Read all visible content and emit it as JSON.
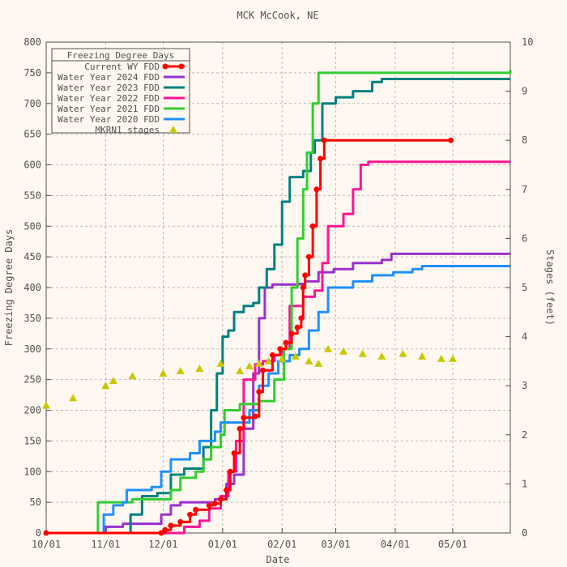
{
  "chart_data": {
    "type": "line",
    "title": "MCK McCook, NE",
    "xlabel": "Date",
    "ylabel": "Freezing Degree Days",
    "y2label": "Stages (feet)",
    "xlim": [
      "10/01",
      "05/31"
    ],
    "ylim": [
      0,
      800
    ],
    "y2lim": [
      0,
      10
    ],
    "x_ticks": [
      "10/01",
      "11/01",
      "12/01",
      "01/01",
      "02/01",
      "03/01",
      "04/01",
      "05/01"
    ],
    "y_ticks": [
      0,
      50,
      100,
      150,
      200,
      250,
      300,
      350,
      400,
      450,
      500,
      550,
      600,
      650,
      700,
      750,
      800
    ],
    "y2_ticks": [
      0,
      1,
      2,
      3,
      4,
      5,
      6,
      7,
      8,
      9,
      10
    ],
    "grid": true,
    "legend_title": "Freezing Degree Days",
    "legend_position": "top-left",
    "series": [
      {
        "name": "Current WY FDD",
        "color": "#ff0000",
        "axis": "left",
        "marker": "dot",
        "points": [
          [
            "10/01",
            0
          ],
          [
            "11/30",
            0
          ],
          [
            "12/02",
            5
          ],
          [
            "12/05",
            12
          ],
          [
            "12/10",
            18
          ],
          [
            "12/15",
            30
          ],
          [
            "12/18",
            38
          ],
          [
            "12/25",
            45
          ],
          [
            "12/28",
            48
          ],
          [
            "12/31",
            55
          ],
          [
            "01/03",
            70
          ],
          [
            "01/05",
            100
          ],
          [
            "01/07",
            130
          ],
          [
            "01/10",
            170
          ],
          [
            "01/12",
            188
          ],
          [
            "01/18",
            190
          ],
          [
            "01/20",
            230
          ],
          [
            "01/22",
            265
          ],
          [
            "01/27",
            290
          ],
          [
            "01/31",
            300
          ],
          [
            "02/03",
            310
          ],
          [
            "02/06",
            325
          ],
          [
            "02/09",
            335
          ],
          [
            "02/11",
            350
          ],
          [
            "02/12",
            400
          ],
          [
            "02/13",
            420
          ],
          [
            "02/15",
            450
          ],
          [
            "02/17",
            500
          ],
          [
            "02/19",
            560
          ],
          [
            "02/21",
            610
          ],
          [
            "02/23",
            640
          ],
          [
            "04/30",
            640
          ]
        ]
      },
      {
        "name": "Water Year 2024 FDD",
        "color": "#9932cc",
        "axis": "left",
        "points": [
          [
            "10/01",
            0
          ],
          [
            "10/30",
            0
          ],
          [
            "11/01",
            10
          ],
          [
            "11/10",
            15
          ],
          [
            "11/25",
            15
          ],
          [
            "11/30",
            30
          ],
          [
            "12/05",
            45
          ],
          [
            "12/10",
            50
          ],
          [
            "12/28",
            55
          ],
          [
            "01/03",
            80
          ],
          [
            "01/07",
            95
          ],
          [
            "01/12",
            170
          ],
          [
            "01/17",
            260
          ],
          [
            "01/20",
            350
          ],
          [
            "01/23",
            400
          ],
          [
            "01/27",
            405
          ],
          [
            "02/10",
            406
          ],
          [
            "02/13",
            410
          ],
          [
            "02/20",
            425
          ],
          [
            "02/28",
            430
          ],
          [
            "03/10",
            440
          ],
          [
            "03/25",
            445
          ],
          [
            "03/30",
            455
          ],
          [
            "05/31",
            455
          ]
        ]
      },
      {
        "name": "Water Year 2023 FDD",
        "color": "#00807f",
        "axis": "left",
        "points": [
          [
            "10/01",
            0
          ],
          [
            "11/10",
            0
          ],
          [
            "11/14",
            30
          ],
          [
            "11/20",
            60
          ],
          [
            "11/28",
            65
          ],
          [
            "12/05",
            95
          ],
          [
            "12/12",
            105
          ],
          [
            "12/22",
            140
          ],
          [
            "12/26",
            200
          ],
          [
            "12/29",
            260
          ],
          [
            "01/01",
            320
          ],
          [
            "01/04",
            330
          ],
          [
            "01/07",
            360
          ],
          [
            "01/12",
            370
          ],
          [
            "01/17",
            375
          ],
          [
            "01/20",
            400
          ],
          [
            "01/24",
            430
          ],
          [
            "01/28",
            470
          ],
          [
            "02/01",
            540
          ],
          [
            "02/05",
            580
          ],
          [
            "02/12",
            590
          ],
          [
            "02/16",
            620
          ],
          [
            "02/18",
            640
          ],
          [
            "02/22",
            700
          ],
          [
            "03/01",
            710
          ],
          [
            "03/10",
            720
          ],
          [
            "03/20",
            735
          ],
          [
            "03/25",
            740
          ],
          [
            "05/31",
            740
          ]
        ]
      },
      {
        "name": "Water Year 2022 FDD",
        "color": "#ff1493",
        "axis": "left",
        "points": [
          [
            "10/01",
            0
          ],
          [
            "12/05",
            0
          ],
          [
            "12/12",
            10
          ],
          [
            "12/20",
            20
          ],
          [
            "12/25",
            40
          ],
          [
            "12/31",
            60
          ],
          [
            "01/04",
            100
          ],
          [
            "01/08",
            150
          ],
          [
            "01/12",
            250
          ],
          [
            "01/18",
            275
          ],
          [
            "01/22",
            280
          ],
          [
            "01/28",
            290
          ],
          [
            "02/01",
            300
          ],
          [
            "02/05",
            370
          ],
          [
            "02/12",
            385
          ],
          [
            "02/18",
            395
          ],
          [
            "02/22",
            440
          ],
          [
            "02/25",
            500
          ],
          [
            "03/05",
            520
          ],
          [
            "03/10",
            560
          ],
          [
            "03/14",
            600
          ],
          [
            "03/18",
            605
          ],
          [
            "05/31",
            605
          ]
        ]
      },
      {
        "name": "Water Year 2021 FDD",
        "color": "#32cd32",
        "axis": "left",
        "points": [
          [
            "10/01",
            0
          ],
          [
            "10/25",
            0
          ],
          [
            "10/28",
            50
          ],
          [
            "11/15",
            55
          ],
          [
            "11/30",
            55
          ],
          [
            "12/05",
            70
          ],
          [
            "12/10",
            90
          ],
          [
            "12/18",
            100
          ],
          [
            "12/22",
            120
          ],
          [
            "12/26",
            140
          ],
          [
            "12/31",
            160
          ],
          [
            "01/02",
            200
          ],
          [
            "01/10",
            210
          ],
          [
            "01/20",
            215
          ],
          [
            "01/28",
            250
          ],
          [
            "02/02",
            300
          ],
          [
            "02/06",
            400
          ],
          [
            "02/09",
            480
          ],
          [
            "02/12",
            560
          ],
          [
            "02/14",
            620
          ],
          [
            "02/17",
            700
          ],
          [
            "02/20",
            750
          ],
          [
            "03/01",
            750
          ],
          [
            "05/31",
            755
          ]
        ]
      },
      {
        "name": "Water Year 2020 FDD",
        "color": "#1e90ff",
        "axis": "left",
        "points": [
          [
            "10/01",
            0
          ],
          [
            "10/28",
            0
          ],
          [
            "10/31",
            30
          ],
          [
            "11/05",
            45
          ],
          [
            "11/10",
            50
          ],
          [
            "11/12",
            70
          ],
          [
            "11/25",
            75
          ],
          [
            "11/30",
            100
          ],
          [
            "12/05",
            120
          ],
          [
            "12/15",
            130
          ],
          [
            "12/20",
            150
          ],
          [
            "12/28",
            165
          ],
          [
            "12/31",
            180
          ],
          [
            "01/15",
            200
          ],
          [
            "01/20",
            240
          ],
          [
            "01/25",
            260
          ],
          [
            "01/30",
            280
          ],
          [
            "02/05",
            290
          ],
          [
            "02/10",
            300
          ],
          [
            "02/15",
            330
          ],
          [
            "02/20",
            360
          ],
          [
            "02/25",
            400
          ],
          [
            "03/10",
            410
          ],
          [
            "03/20",
            420
          ],
          [
            "03/31",
            425
          ],
          [
            "04/10",
            430
          ],
          [
            "04/15",
            435
          ],
          [
            "05/31",
            435
          ]
        ]
      },
      {
        "name": "MKRN1 stages",
        "color": "#c8c800",
        "axis": "right",
        "marker": "triangle",
        "points": [
          [
            "10/01",
            2.6
          ],
          [
            "10/15",
            2.75
          ],
          [
            "11/01",
            3.0
          ],
          [
            "11/05",
            3.1
          ],
          [
            "11/15",
            3.2
          ],
          [
            "12/01",
            3.25
          ],
          [
            "12/10",
            3.3
          ],
          [
            "12/20",
            3.35
          ],
          [
            "12/31",
            3.45
          ],
          [
            "01/10",
            3.3
          ],
          [
            "01/15",
            3.4
          ],
          [
            "01/20",
            3.45
          ],
          [
            "01/25",
            3.5
          ],
          [
            "02/01",
            3.55
          ],
          [
            "02/08",
            3.6
          ],
          [
            "02/15",
            3.5
          ],
          [
            "02/20",
            3.45
          ],
          [
            "02/25",
            3.75
          ],
          [
            "03/05",
            3.7
          ],
          [
            "03/15",
            3.65
          ],
          [
            "03/25",
            3.6
          ],
          [
            "04/05",
            3.65
          ],
          [
            "04/15",
            3.6
          ],
          [
            "04/25",
            3.55
          ],
          [
            "05/01",
            3.55
          ]
        ]
      }
    ]
  }
}
